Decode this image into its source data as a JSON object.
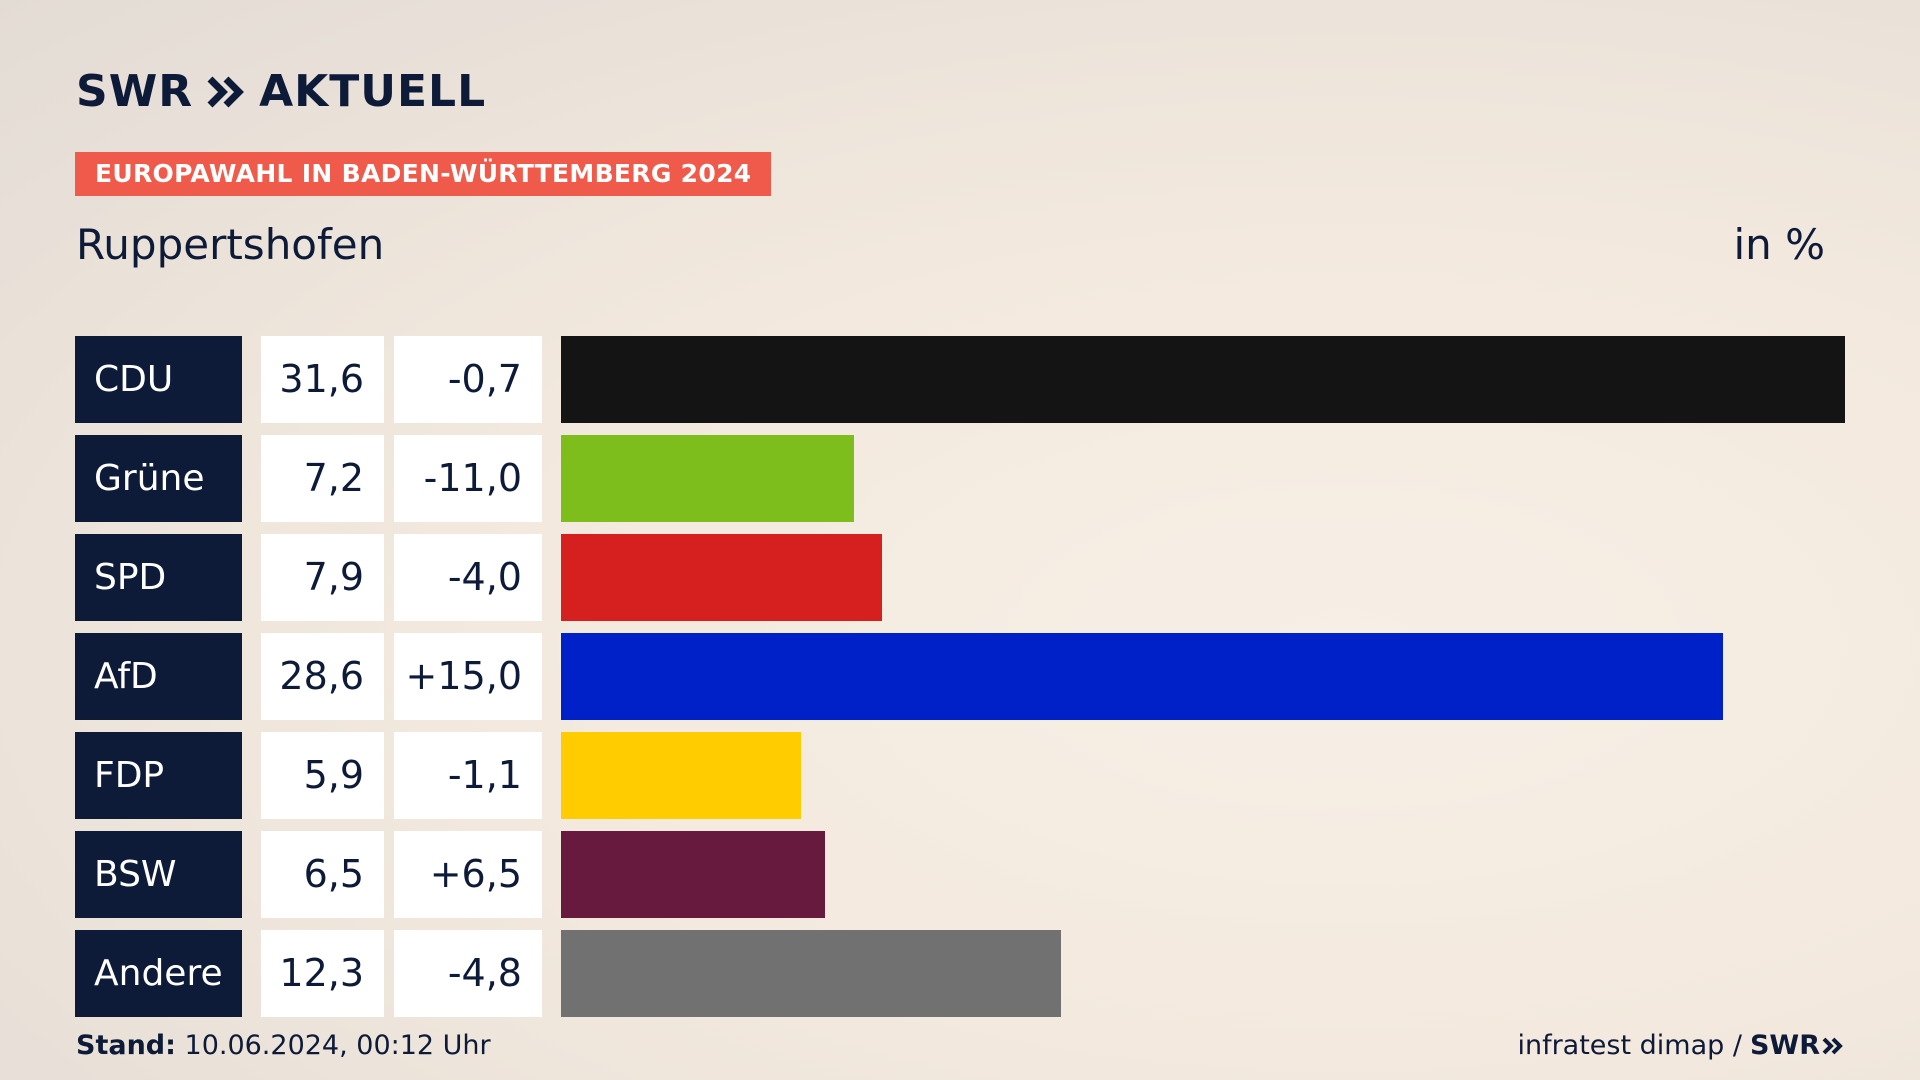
{
  "header": {
    "logo_brand": "SWR",
    "logo_suffix": "AKTUELL",
    "banner": "EUROPAWAHL IN BADEN-WÜRTTEMBERG 2024",
    "place": "Ruppertshofen",
    "unit": "in %"
  },
  "footer": {
    "stand_label": "Stand:",
    "stand_value": "10.06.2024, 00:12 Uhr",
    "source": "infratest dimap /",
    "source_brand": "SWR"
  },
  "chart_data": {
    "type": "bar",
    "orientation": "horizontal",
    "categories": [
      "CDU",
      "Grüne",
      "SPD",
      "AfD",
      "FDP",
      "BSW",
      "Andere"
    ],
    "values": [
      31.6,
      7.2,
      7.9,
      28.6,
      5.9,
      6.5,
      12.3
    ],
    "value_labels": [
      "31,6",
      "7,2",
      "7,9",
      "28,6",
      "5,9",
      "6,5",
      "12,3"
    ],
    "change_labels": [
      "-0,7",
      "-11,0",
      "-4,0",
      "+15,0",
      "-1,1",
      "+6,5",
      "-4,8"
    ],
    "colors": [
      "#141414",
      "#7dbd1c",
      "#d62020",
      "#0020c8",
      "#ffcc00",
      "#681a3e",
      "#717171"
    ],
    "xlim": [
      0,
      31.6
    ]
  }
}
